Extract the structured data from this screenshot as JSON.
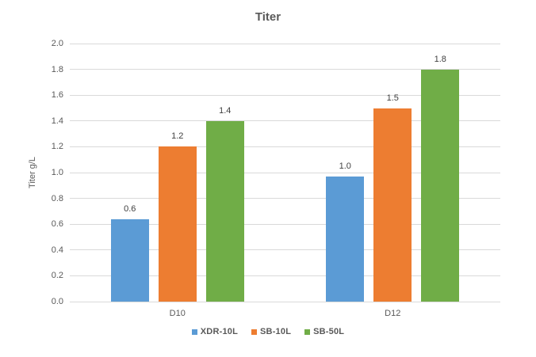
{
  "chart_data": {
    "type": "bar",
    "title": "Titer",
    "xlabel": "",
    "ylabel": "Titer g/L",
    "categories": [
      "D10",
      "D12"
    ],
    "series": [
      {
        "name": "XDR-10L",
        "color": "#5B9BD5",
        "values": [
          0.64,
          0.97
        ],
        "labels": [
          "0.6",
          "1.0"
        ]
      },
      {
        "name": "SB-10L",
        "color": "#ED7D31",
        "values": [
          1.2,
          1.5
        ],
        "labels": [
          "1.2",
          "1.5"
        ]
      },
      {
        "name": "SB-50L",
        "color": "#70AD47",
        "values": [
          1.4,
          1.8
        ],
        "labels": [
          "1.4",
          "1.8"
        ]
      }
    ],
    "ylim": [
      0,
      2.0
    ],
    "ytick_step": 0.2,
    "yticks": [
      "0.0",
      "0.2",
      "0.4",
      "0.6",
      "0.8",
      "1.0",
      "1.2",
      "1.4",
      "1.6",
      "1.8",
      "2.0"
    ],
    "grid": true,
    "legend_position": "bottom",
    "colors": {
      "title_text": "#595959",
      "axis_text": "#595959",
      "data_label_text": "#404040",
      "gridline": "#d9d9d9",
      "background": "#ffffff"
    }
  }
}
